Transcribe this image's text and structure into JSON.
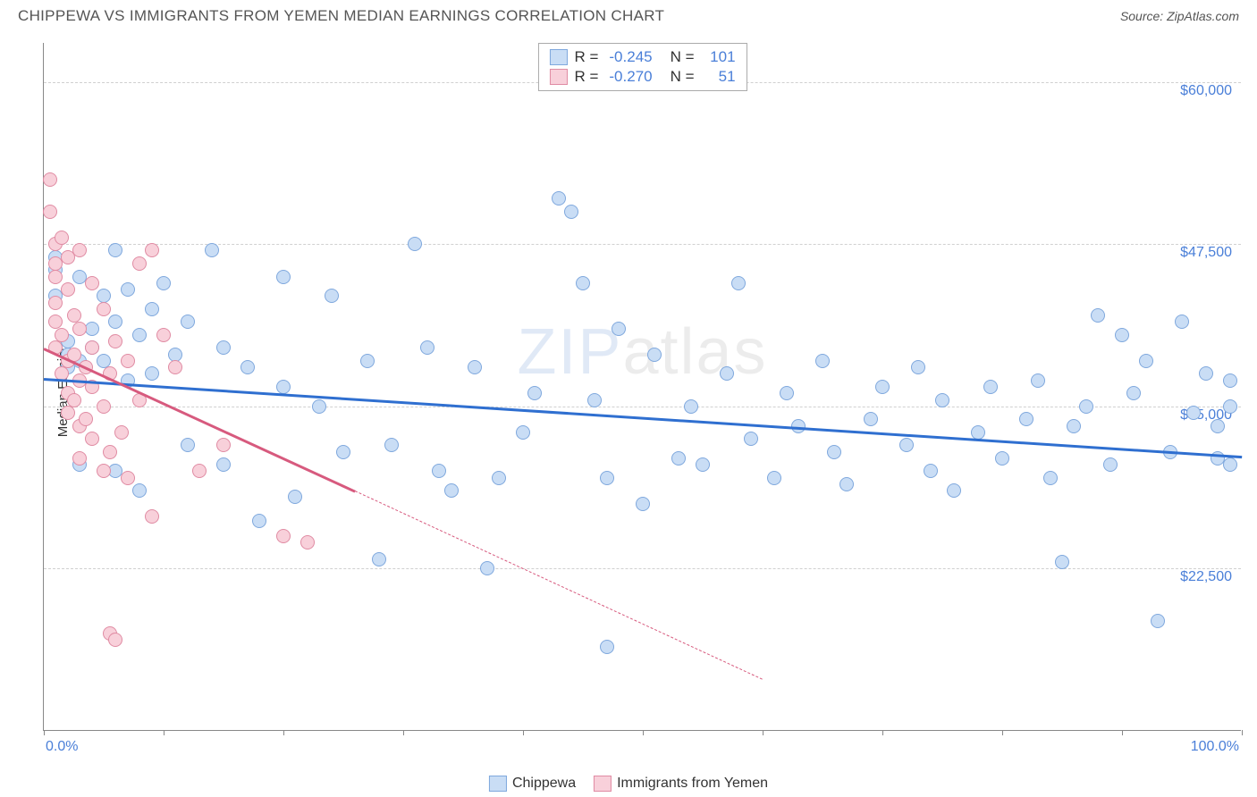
{
  "header": {
    "title": "CHIPPEWA VS IMMIGRANTS FROM YEMEN MEDIAN EARNINGS CORRELATION CHART",
    "source": "Source: ZipAtlas.com"
  },
  "chart": {
    "type": "scatter",
    "y_axis_title": "Median Earnings",
    "xlim": [
      0,
      100
    ],
    "ylim": [
      10000,
      63000
    ],
    "x_left_label": "0.0%",
    "x_right_label": "100.0%",
    "xtick_positions": [
      0,
      10,
      20,
      30,
      40,
      50,
      60,
      70,
      80,
      90,
      100
    ],
    "yticks": [
      {
        "v": 22500,
        "label": "$22,500"
      },
      {
        "v": 35000,
        "label": "$35,000"
      },
      {
        "v": 47500,
        "label": "$47,500"
      },
      {
        "v": 60000,
        "label": "$60,000"
      }
    ],
    "background_color": "#ffffff",
    "grid_color": "#d0d0d0",
    "watermark": "ZIPatlas",
    "series": [
      {
        "name": "Chippewa",
        "marker_fill": "#c9ddf5",
        "marker_stroke": "#7fa8dd",
        "marker_size": 16,
        "trend_color": "#2f6fd0",
        "trend": {
          "x1": 0,
          "y1": 37200,
          "x2": 100,
          "y2": 31200
        },
        "dashed_extent": null,
        "points": [
          [
            1,
            46500
          ],
          [
            1,
            45500
          ],
          [
            1,
            43500
          ],
          [
            2,
            40000
          ],
          [
            2,
            39000
          ],
          [
            2,
            38000
          ],
          [
            3,
            45000
          ],
          [
            3,
            38500
          ],
          [
            3,
            30500
          ],
          [
            4,
            41000
          ],
          [
            4,
            39500
          ],
          [
            5,
            43500
          ],
          [
            5,
            38500
          ],
          [
            6,
            47000
          ],
          [
            6,
            41500
          ],
          [
            6,
            30000
          ],
          [
            7,
            44000
          ],
          [
            7,
            37000
          ],
          [
            8,
            40500
          ],
          [
            8,
            28500
          ],
          [
            9,
            42500
          ],
          [
            9,
            37500
          ],
          [
            10,
            44500
          ],
          [
            11,
            39000
          ],
          [
            12,
            41500
          ],
          [
            12,
            32000
          ],
          [
            14,
            47000
          ],
          [
            15,
            39500
          ],
          [
            15,
            30500
          ],
          [
            17,
            38000
          ],
          [
            18,
            26200
          ],
          [
            20,
            45000
          ],
          [
            20,
            36500
          ],
          [
            21,
            28000
          ],
          [
            23,
            35000
          ],
          [
            24,
            43500
          ],
          [
            25,
            31500
          ],
          [
            27,
            38500
          ],
          [
            28,
            23200
          ],
          [
            29,
            32000
          ],
          [
            31,
            47500
          ],
          [
            32,
            39500
          ],
          [
            33,
            30000
          ],
          [
            34,
            28500
          ],
          [
            36,
            38000
          ],
          [
            37,
            22500
          ],
          [
            38,
            29500
          ],
          [
            40,
            33000
          ],
          [
            41,
            36000
          ],
          [
            43,
            51000
          ],
          [
            44,
            50000
          ],
          [
            45,
            44500
          ],
          [
            46,
            35500
          ],
          [
            47,
            29500
          ],
          [
            47,
            16500
          ],
          [
            48,
            41000
          ],
          [
            50,
            27500
          ],
          [
            51,
            39000
          ],
          [
            53,
            31000
          ],
          [
            54,
            35000
          ],
          [
            55,
            30500
          ],
          [
            57,
            37500
          ],
          [
            58,
            44500
          ],
          [
            59,
            32500
          ],
          [
            61,
            29500
          ],
          [
            62,
            36000
          ],
          [
            63,
            33500
          ],
          [
            65,
            38500
          ],
          [
            66,
            31500
          ],
          [
            67,
            29000
          ],
          [
            69,
            34000
          ],
          [
            70,
            36500
          ],
          [
            72,
            32000
          ],
          [
            73,
            38000
          ],
          [
            74,
            30000
          ],
          [
            75,
            35500
          ],
          [
            76,
            28500
          ],
          [
            78,
            33000
          ],
          [
            79,
            36500
          ],
          [
            80,
            31000
          ],
          [
            82,
            34000
          ],
          [
            83,
            37000
          ],
          [
            84,
            29500
          ],
          [
            85,
            23000
          ],
          [
            86,
            33500
          ],
          [
            87,
            35000
          ],
          [
            88,
            42000
          ],
          [
            89,
            30500
          ],
          [
            90,
            40500
          ],
          [
            91,
            36000
          ],
          [
            92,
            38500
          ],
          [
            93,
            18500
          ],
          [
            94,
            31500
          ],
          [
            95,
            41500
          ],
          [
            96,
            34500
          ],
          [
            97,
            37500
          ],
          [
            98,
            31000
          ],
          [
            98,
            33500
          ],
          [
            99,
            35000
          ],
          [
            99,
            37000
          ],
          [
            99,
            30500
          ]
        ]
      },
      {
        "name": "Immigrants from Yemen",
        "marker_fill": "#f8d0da",
        "marker_stroke": "#e08ba3",
        "marker_size": 16,
        "trend_color": "#d75a7e",
        "trend": {
          "x1": 0,
          "y1": 39500,
          "x2": 26,
          "y2": 28500
        },
        "dashed_extent": {
          "x1": 26,
          "y1": 28500,
          "x2": 60,
          "y2": 14000
        },
        "points": [
          [
            0.5,
            52500
          ],
          [
            0.5,
            50000
          ],
          [
            1,
            47500
          ],
          [
            1,
            46000
          ],
          [
            1,
            45000
          ],
          [
            1,
            43000
          ],
          [
            1,
            41500
          ],
          [
            1,
            39500
          ],
          [
            1.5,
            48000
          ],
          [
            1.5,
            40500
          ],
          [
            1.5,
            37500
          ],
          [
            2,
            46500
          ],
          [
            2,
            44000
          ],
          [
            2,
            38500
          ],
          [
            2,
            36000
          ],
          [
            2,
            34500
          ],
          [
            2.5,
            42000
          ],
          [
            2.5,
            39000
          ],
          [
            2.5,
            35500
          ],
          [
            3,
            47000
          ],
          [
            3,
            41000
          ],
          [
            3,
            37000
          ],
          [
            3,
            33500
          ],
          [
            3,
            31000
          ],
          [
            3.5,
            38000
          ],
          [
            3.5,
            34000
          ],
          [
            4,
            44500
          ],
          [
            4,
            39500
          ],
          [
            4,
            36500
          ],
          [
            4,
            32500
          ],
          [
            5,
            42500
          ],
          [
            5,
            35000
          ],
          [
            5,
            30000
          ],
          [
            5.5,
            37500
          ],
          [
            5.5,
            31500
          ],
          [
            5.5,
            17500
          ],
          [
            6,
            17000
          ],
          [
            6,
            40000
          ],
          [
            6.5,
            33000
          ],
          [
            7,
            38500
          ],
          [
            7,
            29500
          ],
          [
            8,
            46000
          ],
          [
            8,
            35500
          ],
          [
            9,
            47000
          ],
          [
            9,
            26500
          ],
          [
            10,
            40500
          ],
          [
            11,
            38000
          ],
          [
            13,
            30000
          ],
          [
            15,
            32000
          ],
          [
            20,
            25000
          ],
          [
            22,
            24500
          ]
        ]
      }
    ],
    "stats": [
      {
        "swatch_fill": "#c9ddf5",
        "swatch_stroke": "#7fa8dd",
        "r": "-0.245",
        "n": "101"
      },
      {
        "swatch_fill": "#f8d0da",
        "swatch_stroke": "#e08ba3",
        "r": "-0.270",
        "n": "51"
      }
    ],
    "legend": [
      {
        "swatch_fill": "#c9ddf5",
        "swatch_stroke": "#7fa8dd",
        "label": "Chippewa"
      },
      {
        "swatch_fill": "#f8d0da",
        "swatch_stroke": "#e08ba3",
        "label": "Immigrants from Yemen"
      }
    ]
  }
}
